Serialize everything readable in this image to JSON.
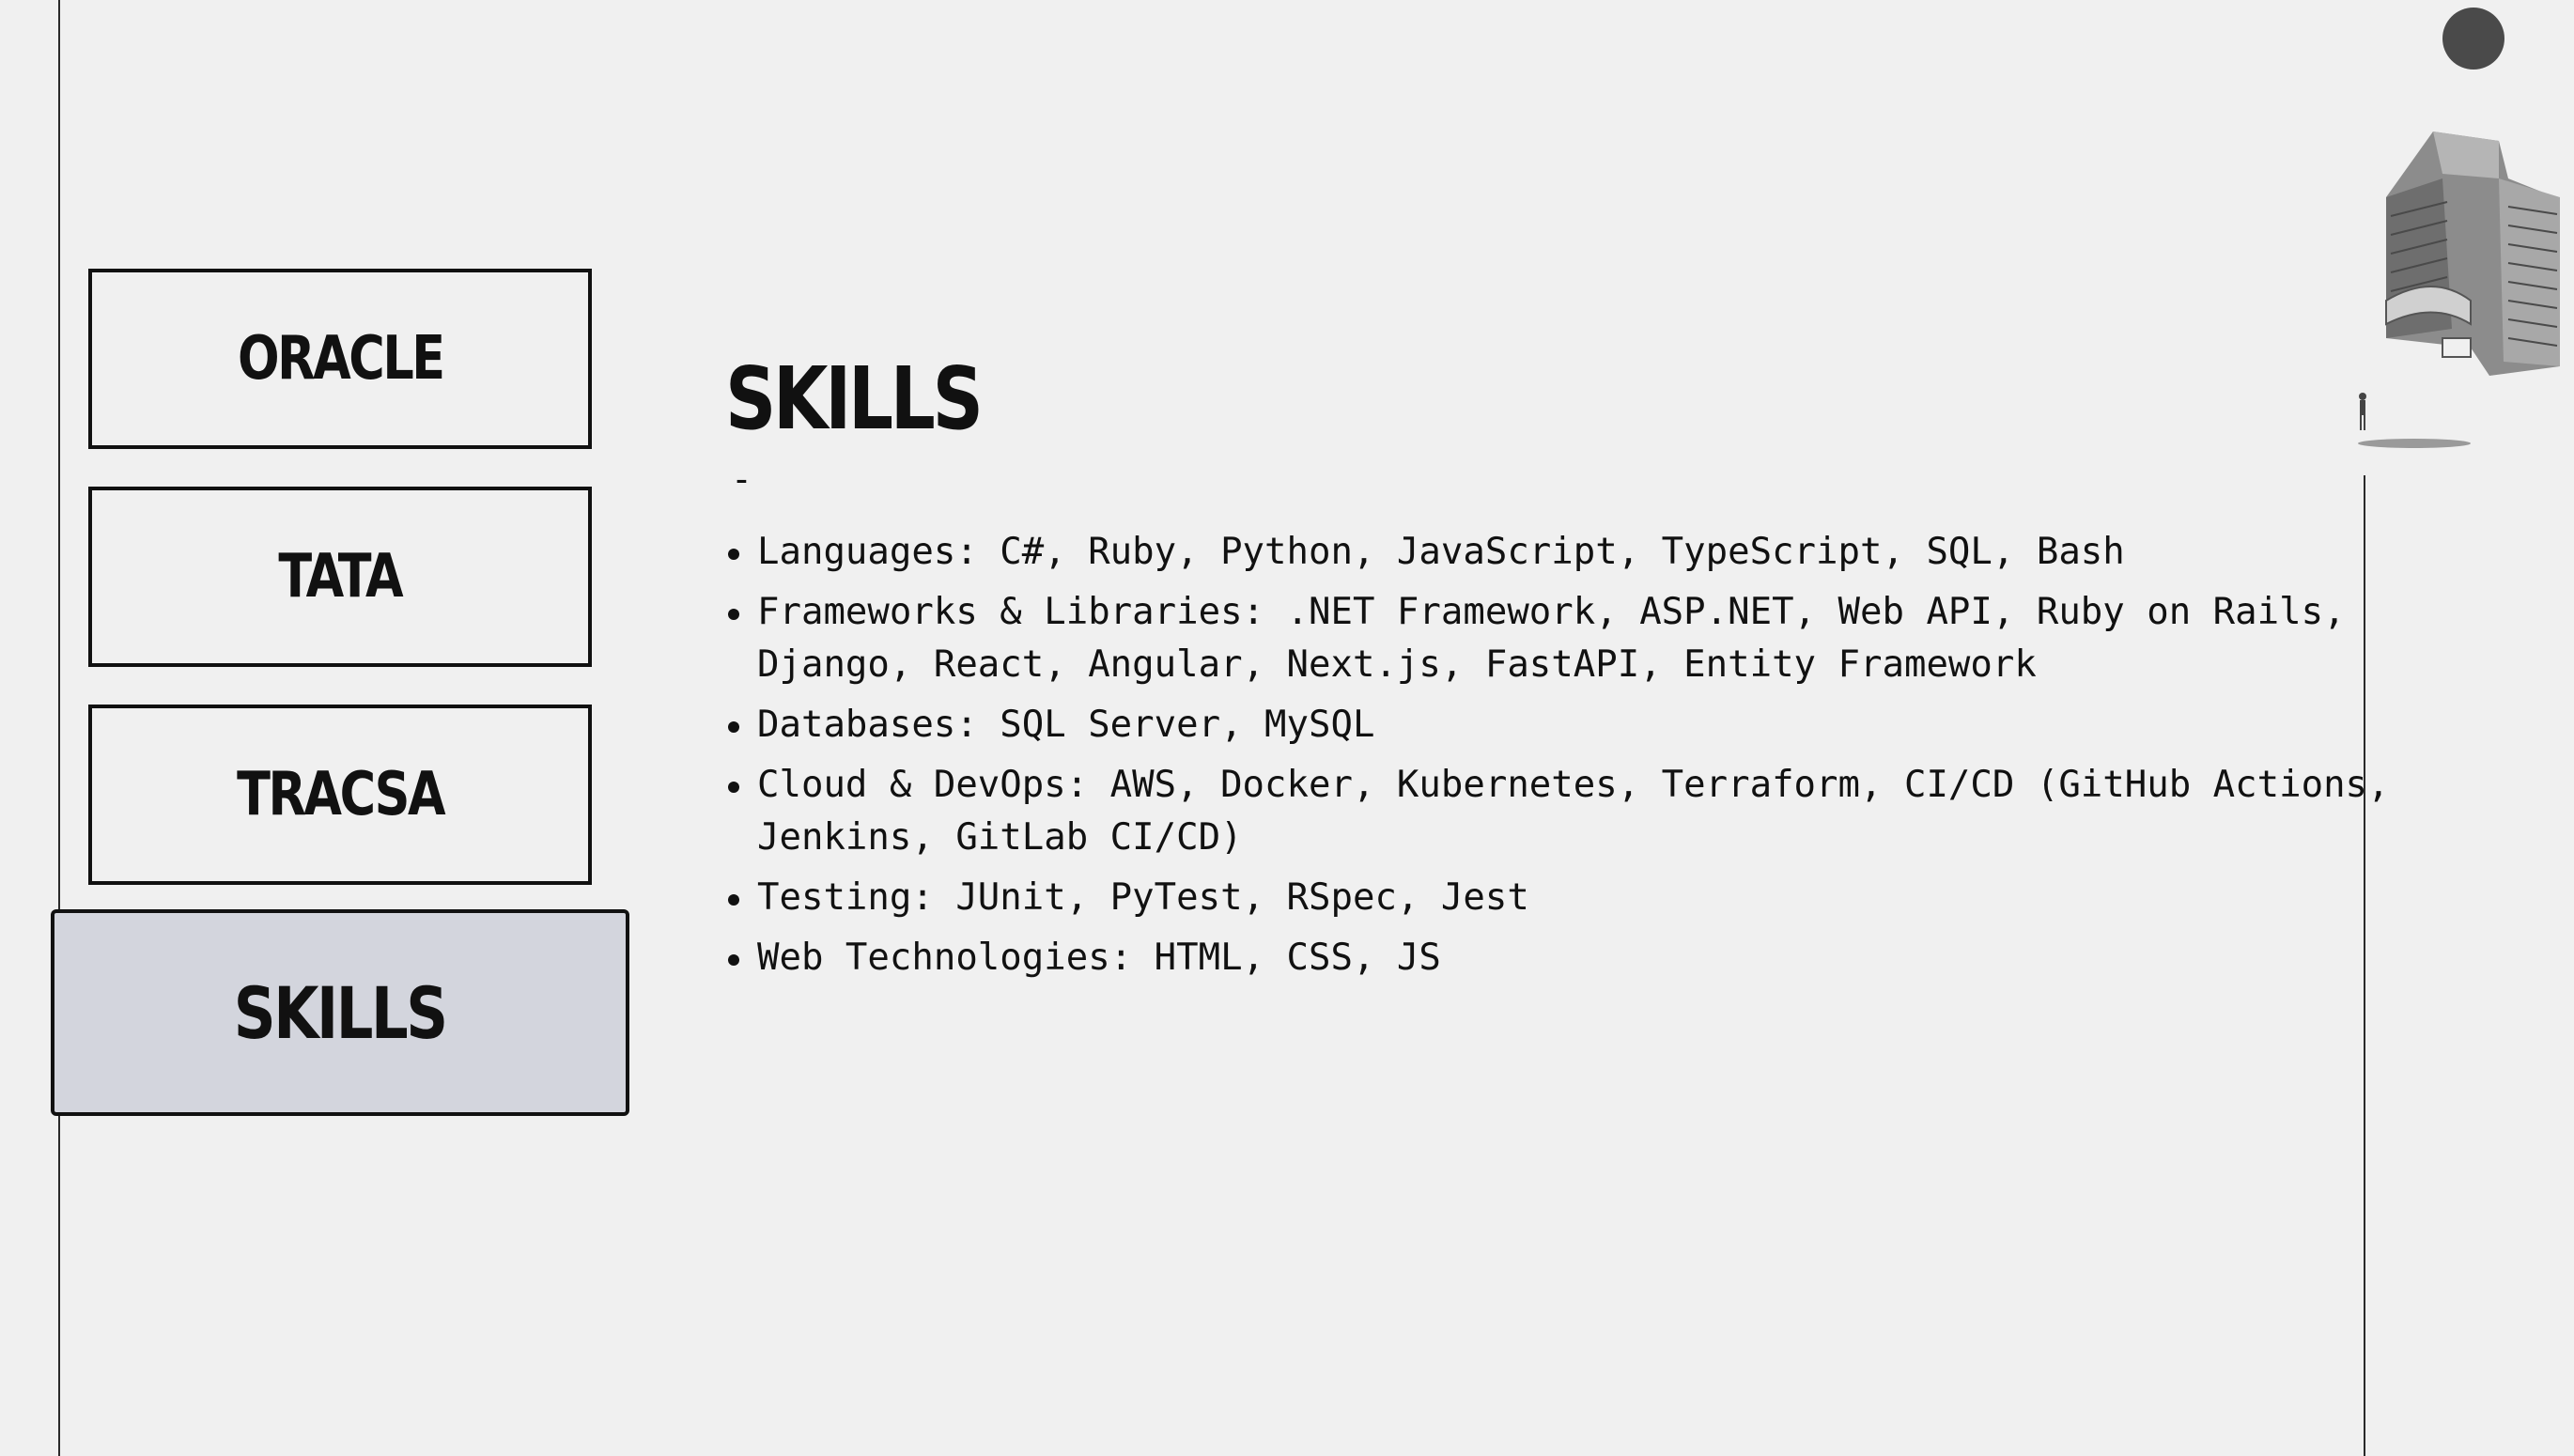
{
  "nav": {
    "items": [
      {
        "label": "ORACLE"
      },
      {
        "label": "TATA"
      },
      {
        "label": "TRACSA"
      },
      {
        "label": "SKILLS",
        "active": true
      }
    ]
  },
  "main": {
    "title": "SKILLS",
    "separator": "-",
    "skills": [
      "Languages: C#, Ruby, Python, JavaScript, TypeScript, SQL, Bash",
      "Frameworks & Libraries: .NET Framework, ASP.NET, Web API, Ruby on Rails, Django, React, Angular, Next.js, FastAPI, Entity Framework",
      "Databases: SQL Server, MySQL",
      "Cloud & DevOps: AWS, Docker, Kubernetes, Terraform, CI/CD (GitHub Actions, Jenkins, GitLab CI/CD)",
      "Testing: JUnit, PyTest, RSpec, Jest",
      "Web Technologies: HTML, CSS, JS"
    ]
  },
  "decoration": {
    "circle_icon": "dark-circle-icon",
    "building_icon": "brutalist-building-icon",
    "active_color": "#d3d5dd",
    "background_color": "#f0f0f0"
  }
}
